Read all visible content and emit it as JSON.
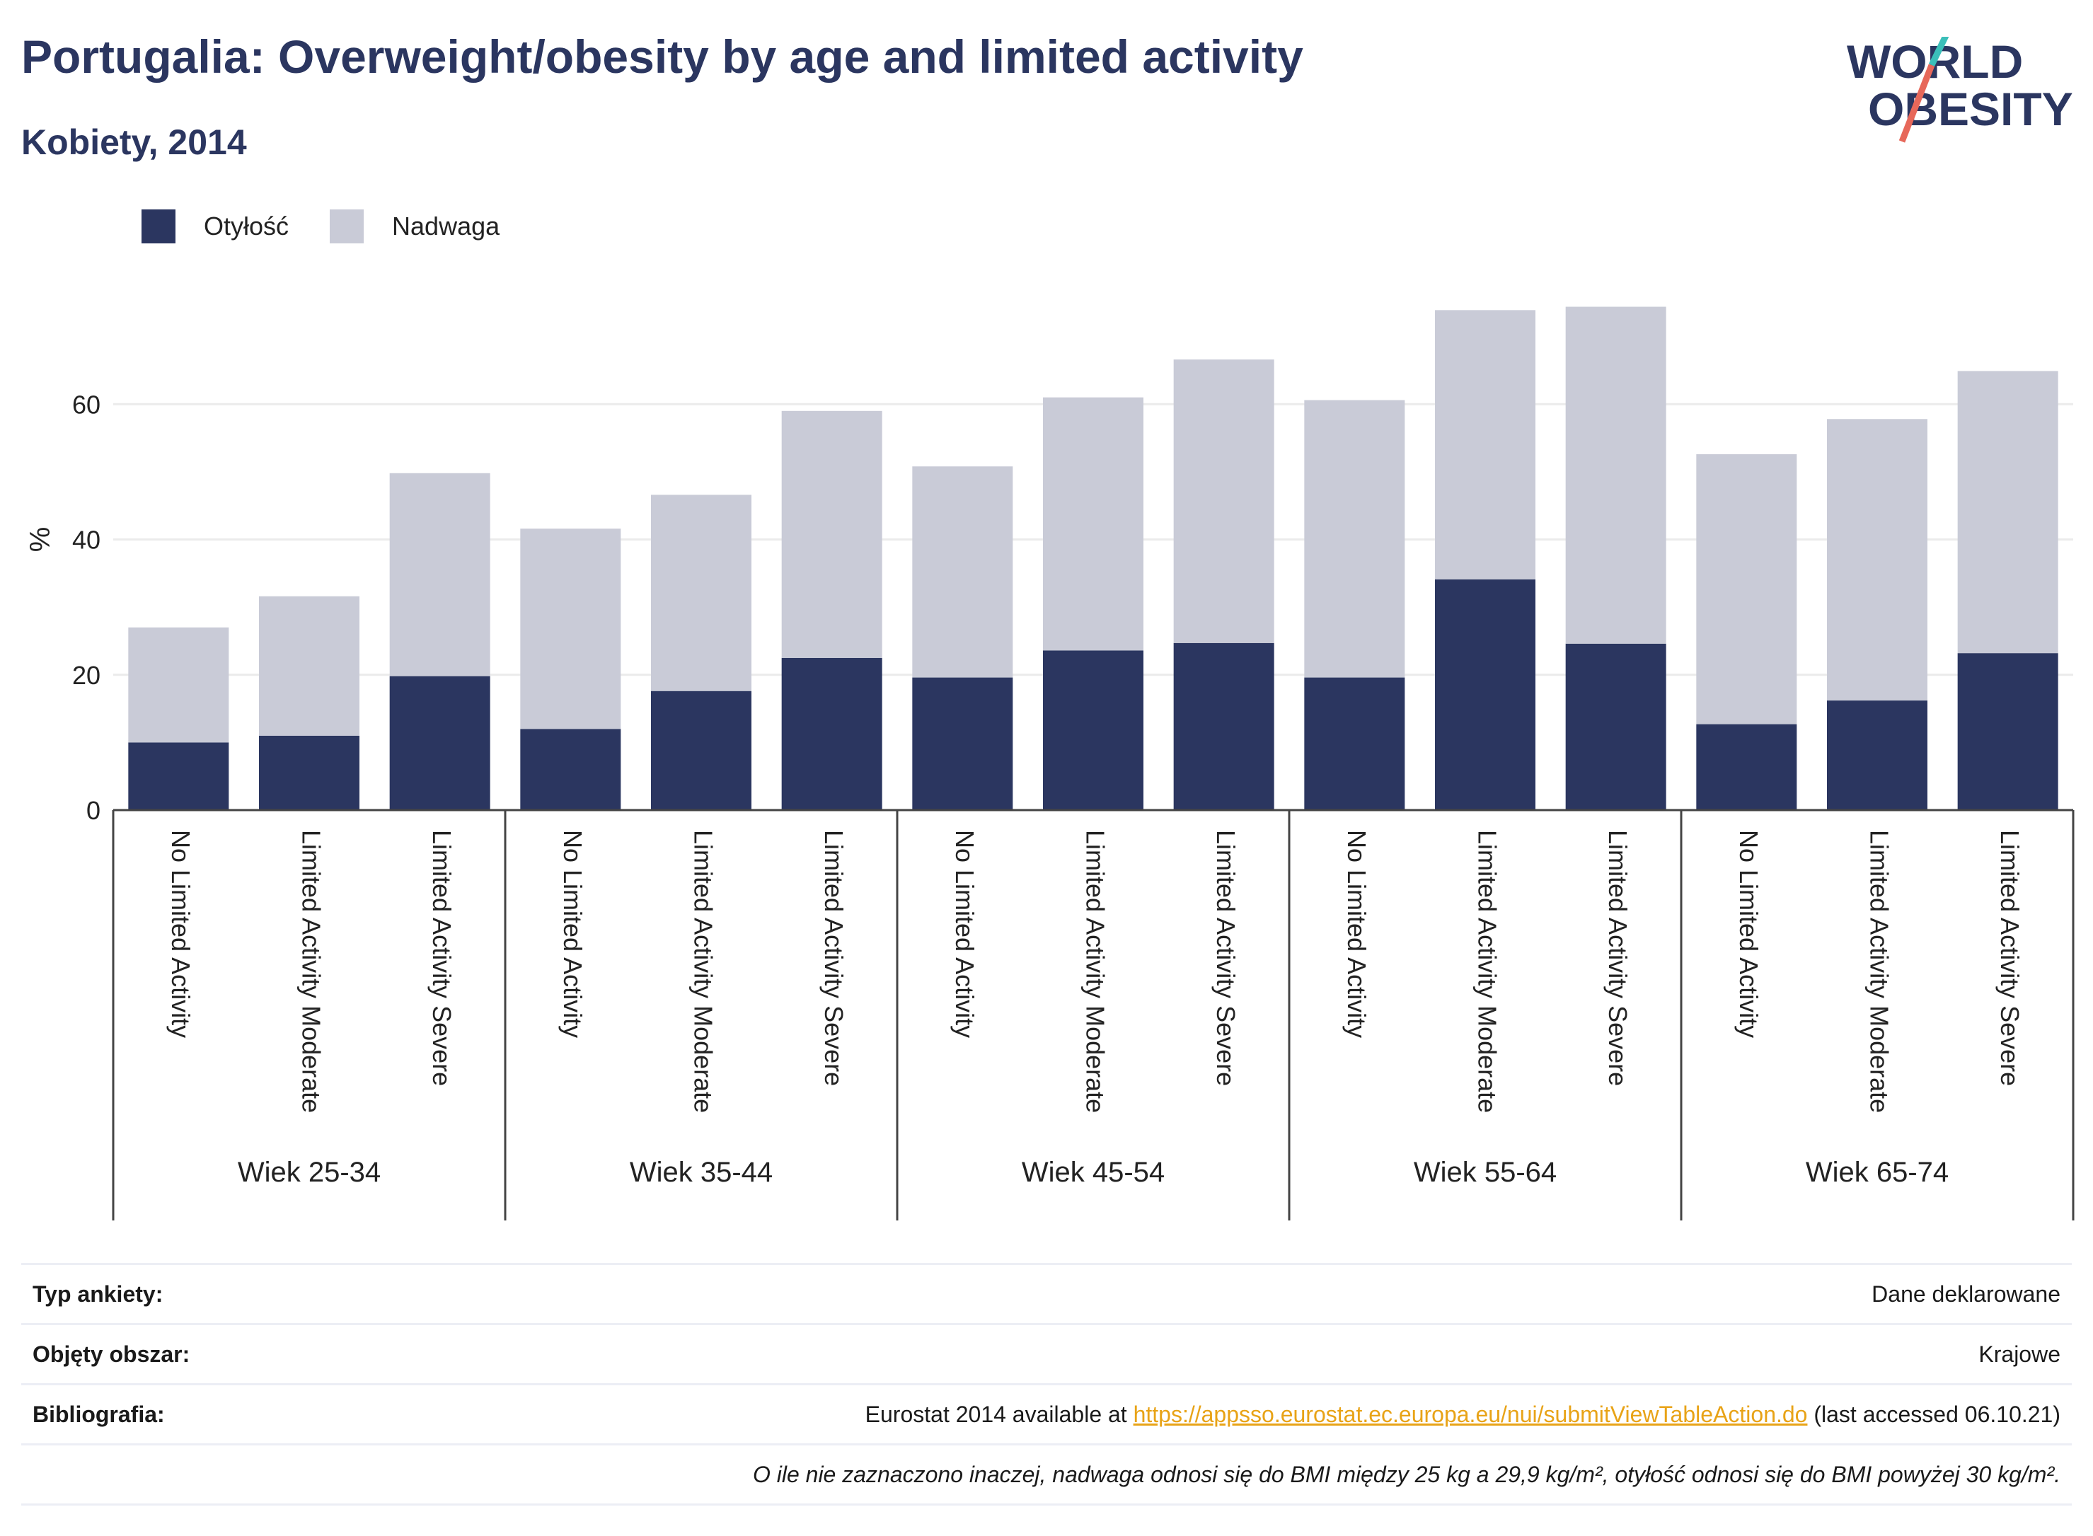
{
  "header": {
    "title": "Portugalia: Overweight/obesity by age and limited activity",
    "subtitle": "Kobiety, 2014"
  },
  "logo": {
    "line1": "WORLD",
    "line2": "OBESITY"
  },
  "colors": {
    "obesity": "#2b3660",
    "overweight": "#c9cbd7",
    "title": "#2b3660",
    "link": "#e8a317",
    "grid": "#ebebeb"
  },
  "legend": {
    "obesity_label": "Otyłość",
    "overweight_label": "Nadwaga"
  },
  "chart_data": {
    "type": "bar",
    "stacked": true,
    "ylabel": "%",
    "ylim": [
      0,
      80
    ],
    "yticks": [
      0,
      20,
      40,
      60
    ],
    "grid": true,
    "legend_position": "top-left",
    "groups": [
      "Wiek 25-34",
      "Wiek 35-44",
      "Wiek 45-54",
      "Wiek 55-64",
      "Wiek 65-74"
    ],
    "categories": [
      "No Limited Activity",
      "Limited Activity Moderate",
      "Limited Activity Severe"
    ],
    "series": [
      {
        "name": "Otyłość",
        "values": [
          [
            10.0,
            11.0,
            19.8
          ],
          [
            12.0,
            17.6,
            22.5
          ],
          [
            19.6,
            23.6,
            24.7
          ],
          [
            19.6,
            34.1,
            24.6
          ],
          [
            12.7,
            16.2,
            23.2
          ]
        ]
      },
      {
        "name": "Nadwaga",
        "values": [
          [
            17.0,
            20.6,
            30.0
          ],
          [
            29.6,
            29.0,
            36.5
          ],
          [
            31.2,
            37.4,
            41.9
          ],
          [
            41.0,
            39.8,
            49.8
          ],
          [
            39.9,
            41.6,
            41.7
          ]
        ]
      }
    ]
  },
  "meta": {
    "survey_label": "Typ ankiety:",
    "survey_value": "Dane deklarowane",
    "area_label": "Objęty obszar:",
    "area_value": "Krajowe",
    "biblio_label": "Bibliografia:",
    "biblio_prefix": "Eurostat 2014 available at ",
    "biblio_link": "https://appsso.eurostat.ec.europa.eu/nui/submitViewTableAction.do",
    "biblio_suffix": " (last accessed 06.10.21)",
    "note": "O ile nie zaznaczono inaczej, nadwaga odnosi się do BMI między 25 kg a 29,9 kg/m², otyłość odnosi się do BMI powyżej 30 kg/m²."
  }
}
